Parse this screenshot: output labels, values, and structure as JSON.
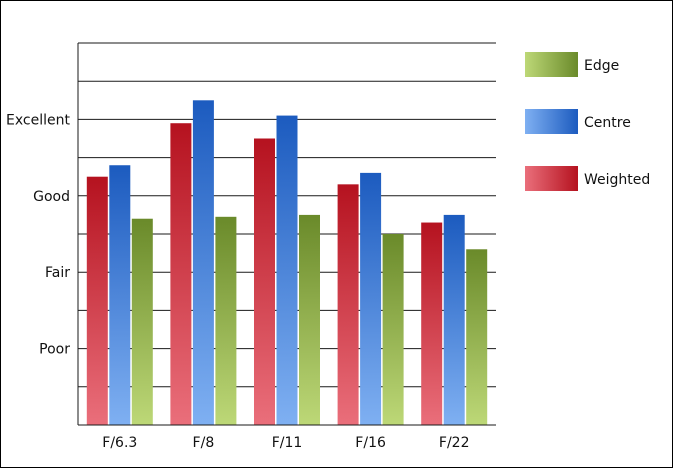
{
  "chart_data": {
    "type": "bar",
    "title": "",
    "xlabel": "",
    "ylabel": "",
    "categories": [
      "F/6.3",
      "F/8",
      "F/11",
      "F/16",
      "F/22"
    ],
    "y_scale": {
      "min": 0,
      "max": 10,
      "tick_labels": [
        {
          "value": 2,
          "label": "Poor"
        },
        {
          "value": 4,
          "label": "Fair"
        },
        {
          "value": 6,
          "label": "Good"
        },
        {
          "value": 8,
          "label": "Excellent"
        }
      ],
      "gridlines_every": 1
    },
    "series": [
      {
        "name": "Weighted",
        "values": [
          6.5,
          7.9,
          7.5,
          6.3,
          5.3
        ],
        "color_top": "#b5121f",
        "color_bottom": "#ea6f7b"
      },
      {
        "name": "Centre",
        "values": [
          6.8,
          8.5,
          8.1,
          6.6,
          5.5
        ],
        "color_top": "#1c5bbf",
        "color_bottom": "#7fb0f2"
      },
      {
        "name": "Edge",
        "values": [
          5.4,
          5.45,
          5.5,
          5.0,
          4.6
        ],
        "color_top": "#6a8a2a",
        "color_bottom": "#bdd877"
      }
    ],
    "legend": {
      "placement": "right",
      "entries": [
        "Edge",
        "Centre",
        "Weighted"
      ]
    },
    "grid": true
  }
}
